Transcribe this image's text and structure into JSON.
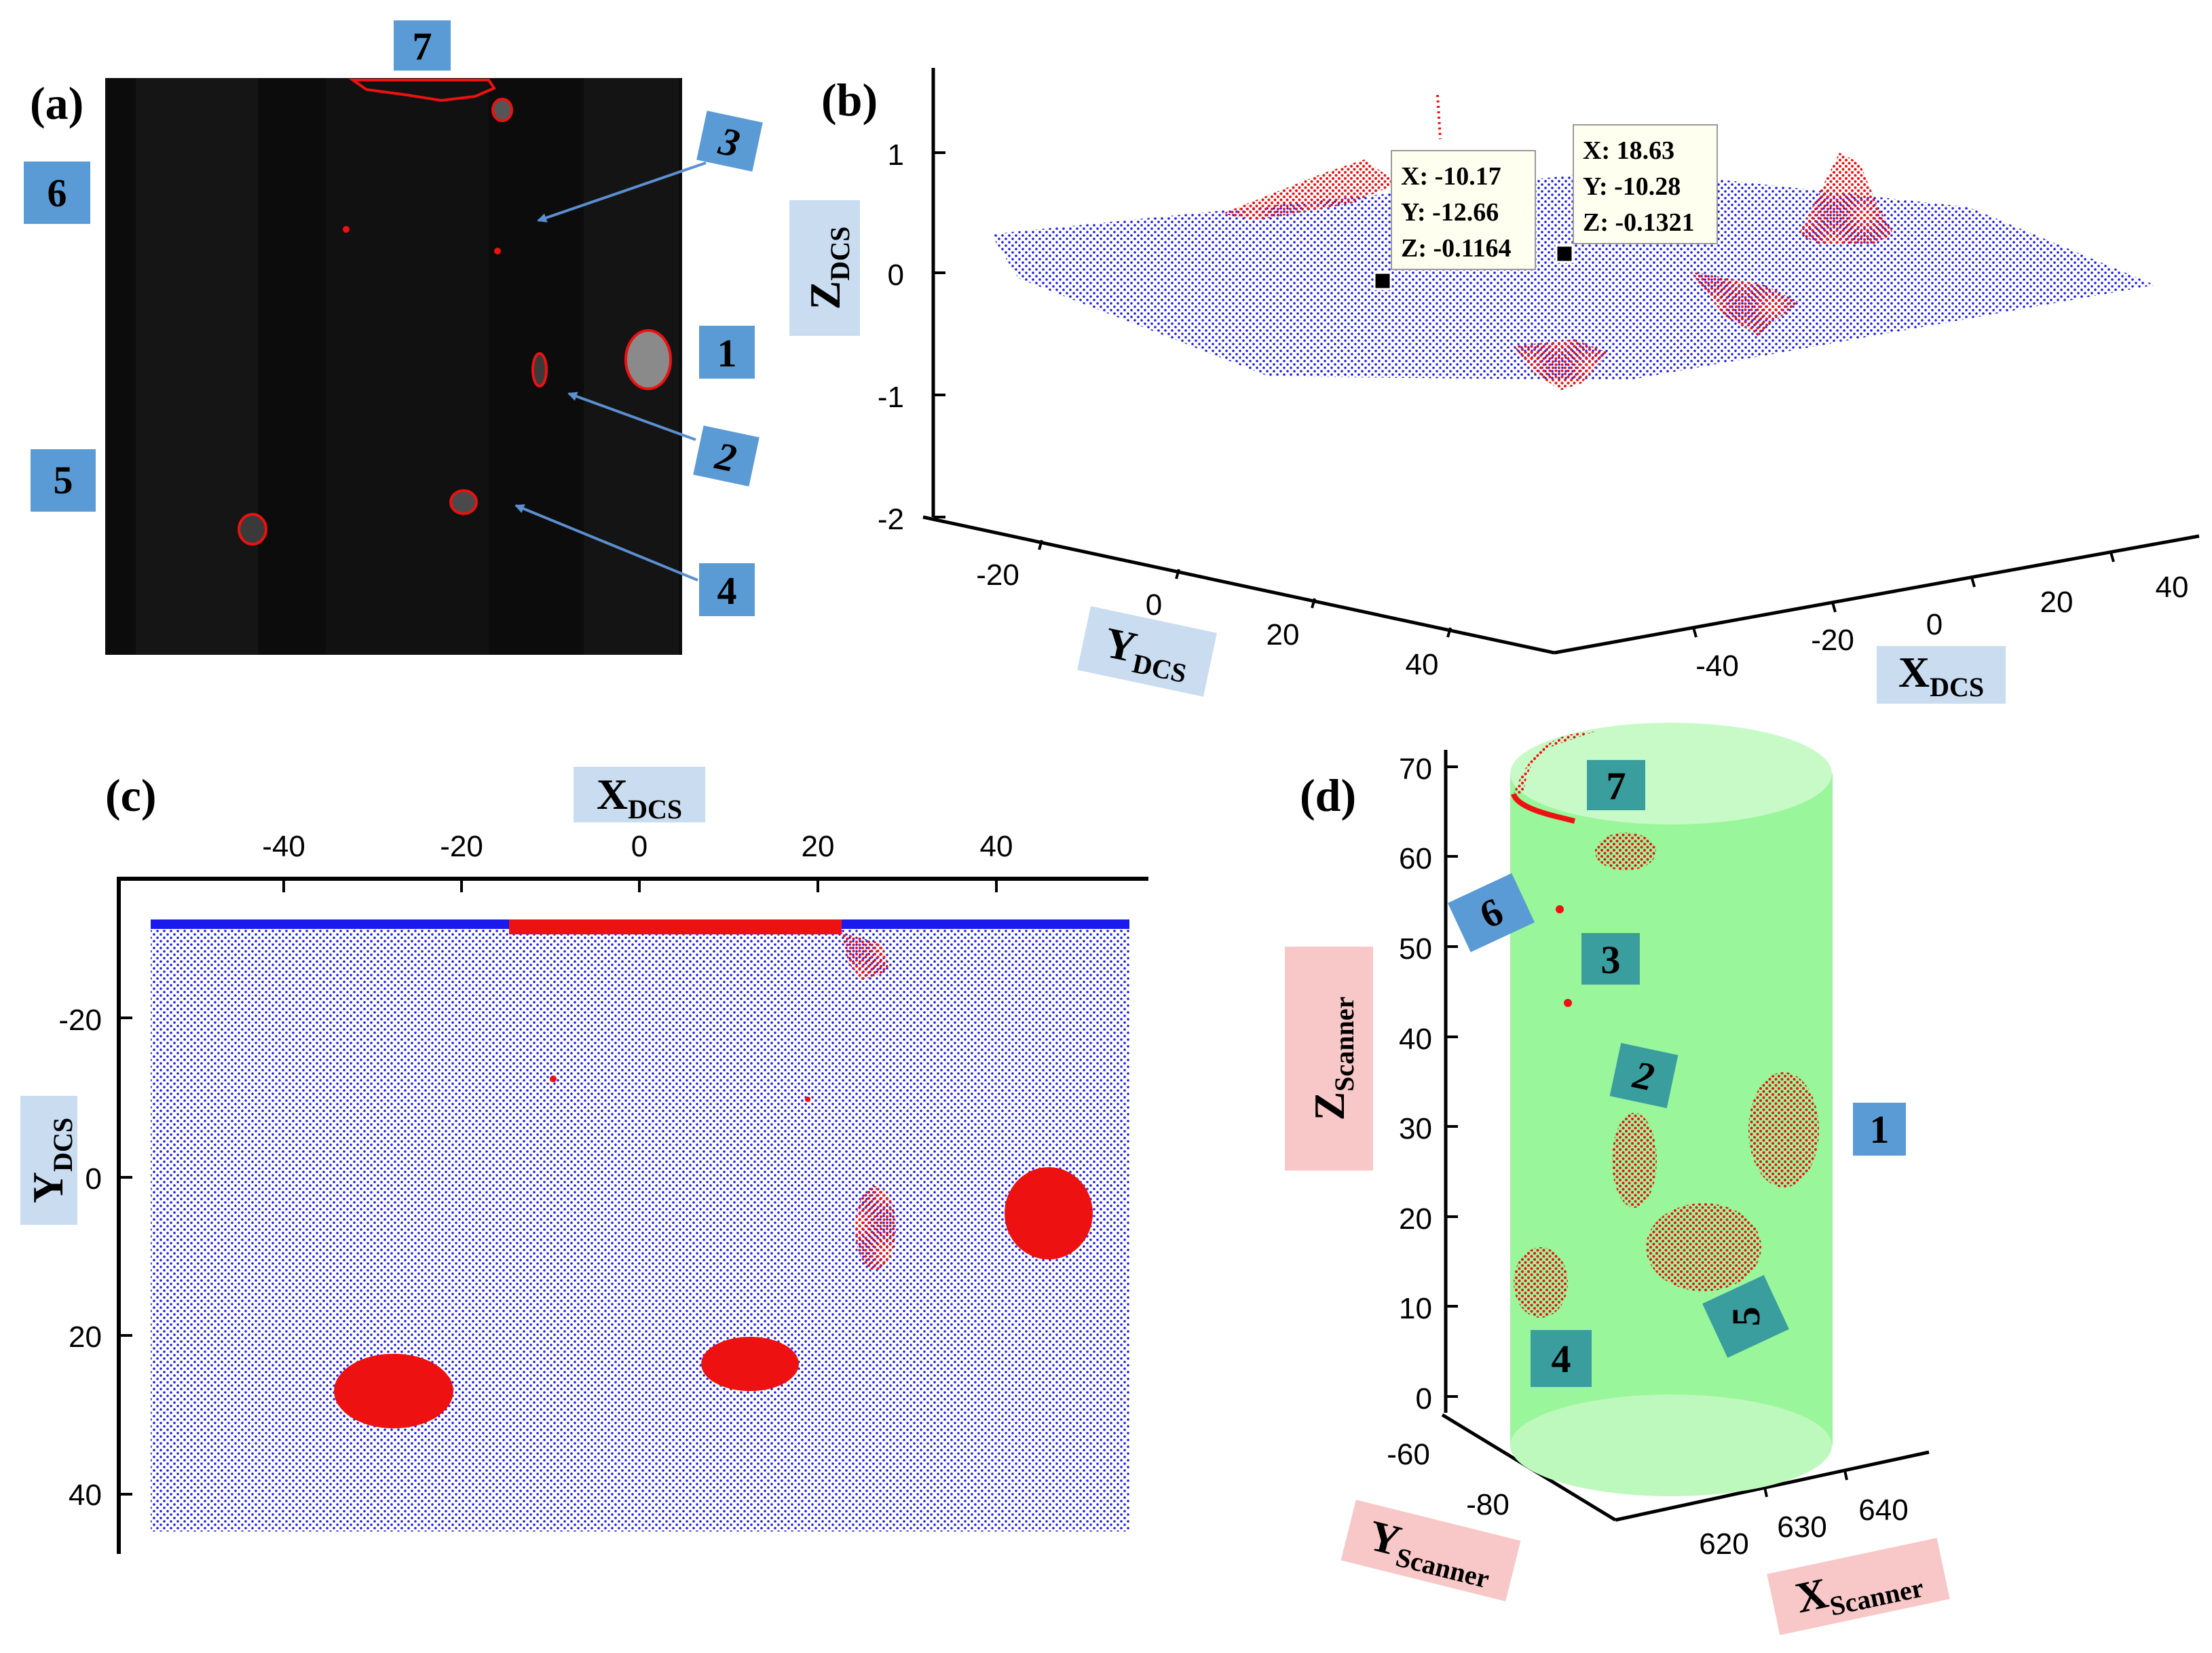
{
  "panels": {
    "a": {
      "label": "(a)",
      "numbers": [
        "1",
        "2",
        "3",
        "4",
        "5",
        "6",
        "7"
      ]
    },
    "b": {
      "label": "(b)",
      "z_ticks": [
        "1",
        "0",
        "-1",
        "-2"
      ],
      "y_ticks": [
        "-20",
        "0",
        "20",
        "40"
      ],
      "x_ticks": [
        "-40",
        "-20",
        "0",
        "20",
        "40"
      ],
      "z_label": {
        "main": "Z",
        "sub": "DCS"
      },
      "y_label": {
        "main": "Y",
        "sub": "DCS"
      },
      "x_label": {
        "main": "X",
        "sub": "DCS"
      },
      "tooltip1": {
        "x": "X: -10.17",
        "y": "Y: -12.66",
        "z": "Z: -0.1164"
      },
      "tooltip2": {
        "x": "X: 18.63",
        "y": "Y: -10.28",
        "z": "Z: -0.1321"
      }
    },
    "c": {
      "label": "(c)",
      "x_label": {
        "main": "X",
        "sub": "DCS"
      },
      "y_label": {
        "main": "Y",
        "sub": "DCS"
      },
      "x_ticks": [
        "-40",
        "-20",
        "0",
        "20",
        "40"
      ],
      "y_ticks": [
        "-20",
        "0",
        "20",
        "40"
      ]
    },
    "d": {
      "label": "(d)",
      "z_ticks": [
        "70",
        "60",
        "50",
        "40",
        "30",
        "20",
        "10",
        "0"
      ],
      "y_ticks": [
        "-60",
        "-80"
      ],
      "x_ticks": [
        "620",
        "630",
        "640"
      ],
      "z_label": {
        "main": "Z",
        "sub": "Scanner"
      },
      "y_label": {
        "main": "Y",
        "sub": "Scanner"
      },
      "x_label": {
        "main": "X",
        "sub": "Scanner"
      },
      "numbers": [
        "1",
        "2",
        "3",
        "4",
        "5",
        "6",
        "7"
      ]
    }
  },
  "colors": {
    "points": "#1a1aee",
    "defects": "#ee1111",
    "box_blue": "#5b9bd5",
    "box_teal": "#3a9e9e",
    "cylinder": "#8ff58f",
    "pink_label": "#f8c8c8",
    "blue_label": "#c9dcf0",
    "tooltip_bg": "#fffff0"
  }
}
